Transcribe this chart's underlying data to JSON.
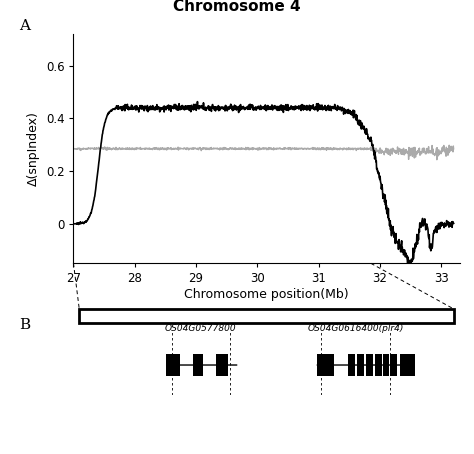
{
  "title": "Chromosome 4",
  "panel_a_label": "A",
  "panel_b_label": "B",
  "ylabel": "Δ(snpIndex)",
  "xlabel": "Chromosome position(Mb)",
  "x_ticks": [
    27,
    28,
    29,
    30,
    31,
    32,
    33
  ],
  "x_tick_labels": [
    "27",
    "28",
    "29",
    "30",
    "31",
    "32",
    "33"
  ],
  "ylim": [
    -0.15,
    0.72
  ],
  "yticks": [
    0.0,
    0.2,
    0.4,
    0.6
  ],
  "xlim": [
    27.0,
    33.3
  ],
  "background_color": "#ffffff",
  "black_line_color": "#000000",
  "gray_line_color": "#aaaaaa",
  "gene1_label": "OS04G0577800",
  "gene2_label": "OS04G0616400(plr4)"
}
